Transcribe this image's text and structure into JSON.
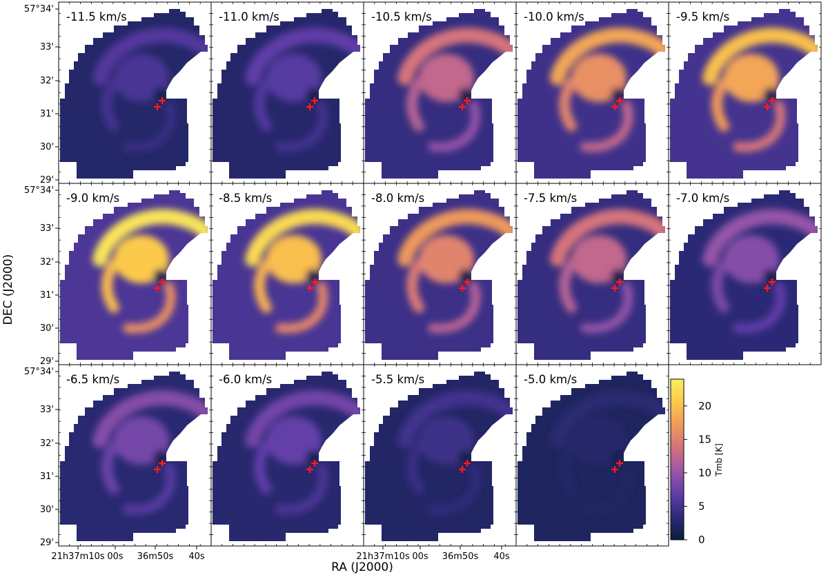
{
  "chart_data": {
    "type": "heatmap",
    "title": "",
    "xlabel": "RA (J2000)",
    "ylabel": "DEC (J2000)",
    "grid": false,
    "colorbar": {
      "label": "Tmb [K]",
      "range": [
        0,
        24
      ],
      "ticks": [
        "0",
        "5",
        "10",
        "15",
        "20"
      ],
      "colormap": [
        "#0b1e3c",
        "#2d2a78",
        "#5e3da8",
        "#9a56a8",
        "#d4717e",
        "#f09a5a",
        "#fbc84a",
        "#f8f060"
      ]
    },
    "y_ticks": [
      "57°34'",
      "33'",
      "32'",
      "31'",
      "30'",
      "29'"
    ],
    "x_ticks": [
      "21h37m10s",
      "00s",
      "36m50s",
      "40s"
    ],
    "markers": {
      "symbol": "+",
      "color": "#ff1a1a",
      "count": 2
    },
    "panels": [
      {
        "velocity": "-11.5 km/s",
        "peak_tmb": 6
      },
      {
        "velocity": "-11.0 km/s",
        "peak_tmb": 7
      },
      {
        "velocity": "-10.5 km/s",
        "peak_tmb": 14
      },
      {
        "velocity": "-10.0 km/s",
        "peak_tmb": 18
      },
      {
        "velocity": "-9.5 km/s",
        "peak_tmb": 20
      },
      {
        "velocity": "-9.0 km/s",
        "peak_tmb": 23
      },
      {
        "velocity": "-8.5 km/s",
        "peak_tmb": 22
      },
      {
        "velocity": "-8.0 km/s",
        "peak_tmb": 17
      },
      {
        "velocity": "-7.5 km/s",
        "peak_tmb": 14
      },
      {
        "velocity": "-7.0 km/s",
        "peak_tmb": 10
      },
      {
        "velocity": "-6.5 km/s",
        "peak_tmb": 9
      },
      {
        "velocity": "-6.0 km/s",
        "peak_tmb": 8
      },
      {
        "velocity": "-5.5 km/s",
        "peak_tmb": 5
      },
      {
        "velocity": "-5.0 km/s",
        "peak_tmb": 3
      }
    ]
  }
}
